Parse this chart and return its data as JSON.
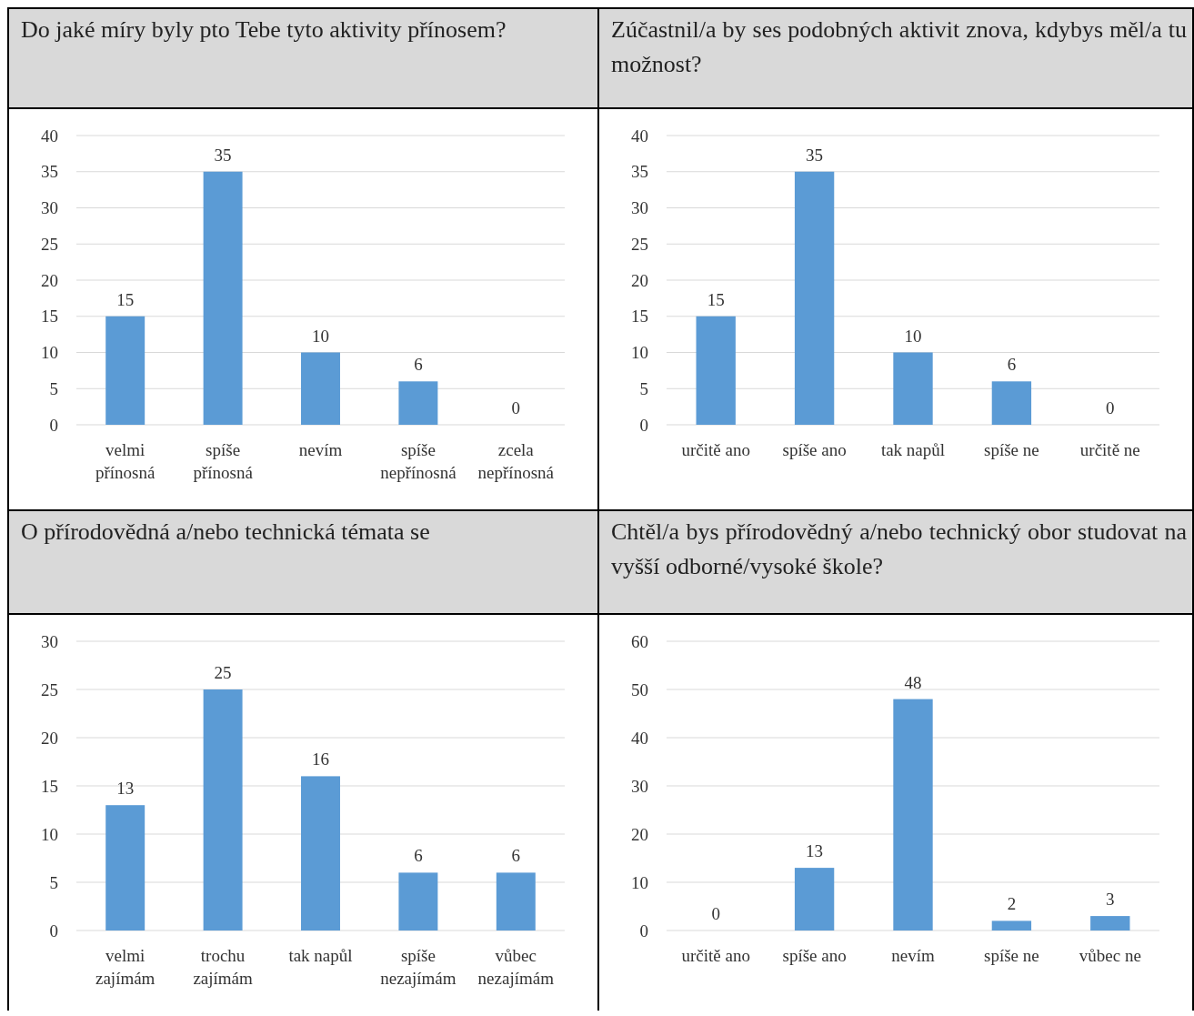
{
  "chart_data": [
    {
      "type": "bar",
      "title": "Do jaké míry byly pto Tebe tyto aktivity přínosem?",
      "categories": [
        "velmi přínosná",
        "spíše přínosná",
        "nevím",
        "spíše nepřínosná",
        "zcela nepřínosná"
      ],
      "values": [
        15,
        35,
        10,
        6,
        0
      ],
      "color": "#5b9bd5",
      "ylim": [
        0,
        40
      ],
      "yticks": [
        0,
        5,
        10,
        15,
        20,
        25,
        30,
        35,
        40
      ],
      "grid": "y",
      "data_labels": true
    },
    {
      "type": "bar",
      "title": "Zúčastnil/a by ses podobných aktivit znova, kdybys měl/a tu možnost?",
      "categories": [
        "určitě ano",
        "spíše ano",
        "tak napůl",
        "spíše ne",
        "určitě ne"
      ],
      "values": [
        15,
        35,
        10,
        6,
        0
      ],
      "color": "#5b9bd5",
      "ylim": [
        0,
        40
      ],
      "yticks": [
        0,
        5,
        10,
        15,
        20,
        25,
        30,
        35,
        40
      ],
      "grid": "y",
      "data_labels": true
    },
    {
      "type": "bar",
      "title": "O přírodovědná a/nebo technická témata se",
      "categories": [
        "velmi zajímám",
        "trochu zajímám",
        "tak napůl",
        "spíše nezajímám",
        "vůbec nezajímám"
      ],
      "values": [
        13,
        25,
        16,
        6,
        6
      ],
      "color": "#5b9bd5",
      "ylim": [
        0,
        30
      ],
      "yticks": [
        0,
        5,
        10,
        15,
        20,
        25,
        30
      ],
      "grid": "y",
      "data_labels": true
    },
    {
      "type": "bar",
      "title": "Chtěl/a bys přírodovědný a/nebo technický obor studovat na vyšší odborné/vysoké škole?",
      "categories": [
        "určitě ano",
        "spíše ano",
        "nevím",
        "spíše ne",
        "vůbec ne"
      ],
      "values": [
        0,
        13,
        48,
        2,
        3
      ],
      "color": "#5b9bd5",
      "ylim": [
        0,
        60
      ],
      "yticks": [
        0,
        10,
        20,
        30,
        40,
        50,
        60
      ],
      "grid": "y",
      "data_labels": true
    }
  ]
}
